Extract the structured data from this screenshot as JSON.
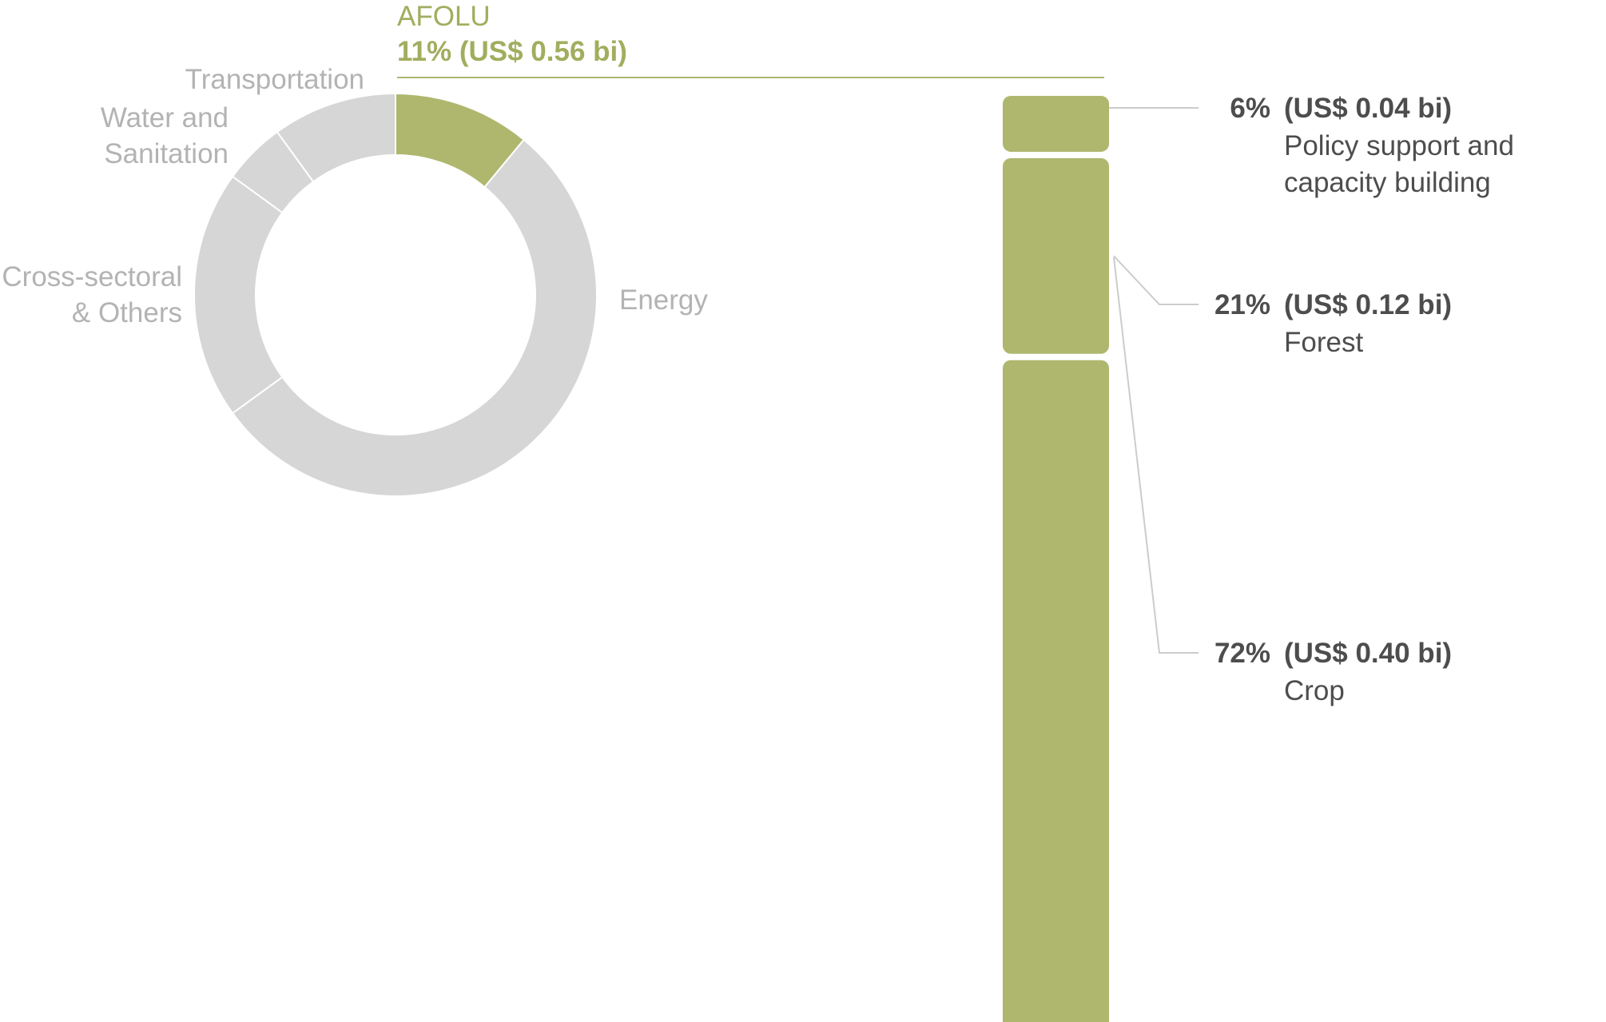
{
  "chart_data": [
    {
      "type": "pie",
      "variant": "donut",
      "slices": [
        {
          "label": "AFOLU",
          "value": 11,
          "highlight": true
        },
        {
          "label": "Energy",
          "value": 54
        },
        {
          "label": "Cross-sectoral\n& Others",
          "value": 20
        },
        {
          "label": "Water and\nSanitation",
          "value": 5
        },
        {
          "label": "Transportation",
          "value": 10
        }
      ],
      "callout": {
        "name": "AFOLU",
        "value": "11% (US$ 0.56 bi)"
      }
    },
    {
      "type": "bar",
      "variant": "stacked-vertical",
      "segments": [
        {
          "pct": 6,
          "pct_label": "6%",
          "amount": "(US$ 0.04 bi)",
          "label": "Policy support and\ncapacity building"
        },
        {
          "pct": 21,
          "pct_label": "21%",
          "amount": "(US$ 0.12 bi)",
          "label": "Forest"
        },
        {
          "pct": 72,
          "pct_label": "72%",
          "amount": "(US$ 0.40 bi)",
          "label": "Crop"
        }
      ]
    }
  ],
  "colors": {
    "highlight": "#aeb76d",
    "muted": "#d6d6d6",
    "label_muted": "#b3b3b3",
    "label_dark": "#4d4d4d",
    "leader": "#cccccc"
  }
}
